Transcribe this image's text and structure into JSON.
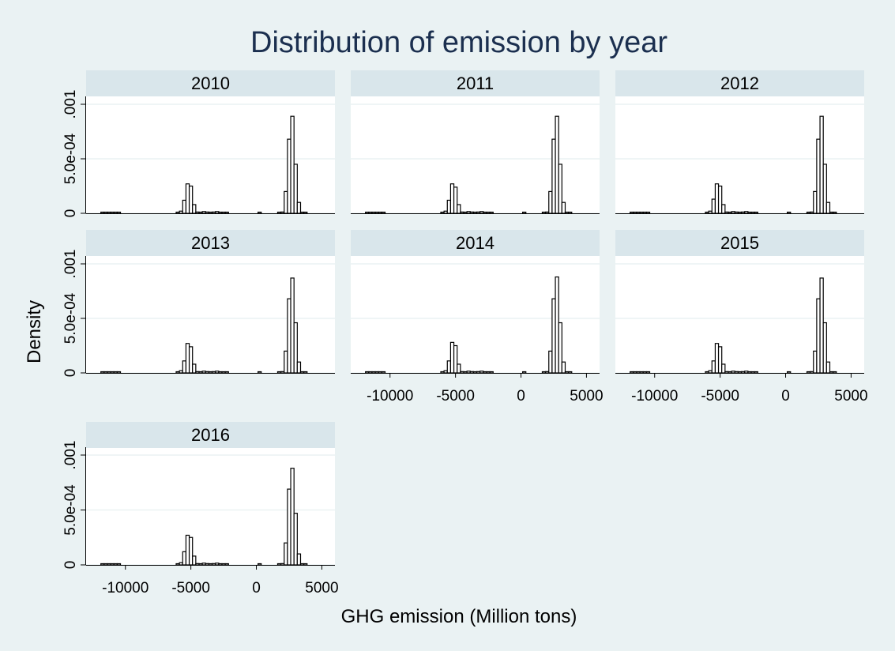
{
  "chart_data": {
    "type": "bar",
    "title": "Distribution of emission by year",
    "xlabel": "GHG emission (Million tons)",
    "ylabel": "Density",
    "xlim": [
      -13000,
      6000
    ],
    "ylim": [
      0,
      0.001
    ],
    "x_ticks": [
      -10000,
      -5000,
      0,
      5000
    ],
    "x_tick_labels": [
      "-10000",
      "-5000",
      "0",
      "5000"
    ],
    "y_ticks": [
      0,
      0.0005,
      0.001
    ],
    "y_tick_labels": [
      "0",
      "5.0e-04",
      ".001"
    ],
    "grid": true,
    "bin_width": 250,
    "bin_starts": [
      -11875,
      -11625,
      -11375,
      -11125,
      -10875,
      -10625,
      -6125,
      -5875,
      -5625,
      -5375,
      -5125,
      -4875,
      -4625,
      -4375,
      -4125,
      -3875,
      -3625,
      -3375,
      -3125,
      -2875,
      -2625,
      -2375,
      125,
      1625,
      1875,
      2125,
      2375,
      2625,
      2875,
      3125,
      3375,
      3625,
      3875,
      4125
    ],
    "panels": [
      {
        "label": "2010",
        "values": [
          4e-06,
          4e-06,
          4e-06,
          4e-06,
          4e-06,
          4e-06,
          4e-06,
          2e-05,
          0.00012,
          0.00027,
          0.00025,
          8e-05,
          1.2e-05,
          8e-06,
          1.6e-05,
          1.2e-05,
          8e-06,
          1.2e-05,
          1.6e-05,
          8e-06,
          8e-06,
          4e-06,
          8e-06,
          4e-06,
          1.2e-05,
          0.0002,
          0.00068,
          0.00089,
          0.00045,
          0.0001,
          1e-05,
          4e-06,
          0,
          0
        ]
      },
      {
        "label": "2011",
        "values": [
          4e-06,
          4e-06,
          4e-06,
          4e-06,
          4e-06,
          4e-06,
          4e-06,
          2e-05,
          0.00012,
          0.00027,
          0.00024,
          8e-05,
          1.2e-05,
          8e-06,
          1.6e-05,
          1.2e-05,
          8e-06,
          1.2e-05,
          1.6e-05,
          8e-06,
          8e-06,
          4e-06,
          8e-06,
          4e-06,
          1.2e-05,
          0.0002,
          0.00068,
          0.00089,
          0.00045,
          0.0001,
          1e-05,
          4e-06,
          0,
          0
        ]
      },
      {
        "label": "2012",
        "values": [
          4e-06,
          4e-06,
          4e-06,
          4e-06,
          4e-06,
          4e-06,
          4e-06,
          2e-05,
          0.00013,
          0.00027,
          0.00025,
          8e-05,
          1.2e-05,
          8e-06,
          1.6e-05,
          1.2e-05,
          8e-06,
          1.2e-05,
          1.6e-05,
          8e-06,
          8e-06,
          4e-06,
          8e-06,
          4e-06,
          1.2e-05,
          0.0002,
          0.00068,
          0.00089,
          0.00045,
          0.0001,
          1e-05,
          4e-06,
          0,
          0
        ]
      },
      {
        "label": "2013",
        "values": [
          4e-06,
          4e-06,
          4e-06,
          4e-06,
          4e-06,
          4e-06,
          4e-06,
          2e-05,
          0.00011,
          0.00027,
          0.00024,
          8e-05,
          1.2e-05,
          8e-06,
          1.6e-05,
          1.2e-05,
          8e-06,
          1.2e-05,
          1.6e-05,
          8e-06,
          8e-06,
          4e-06,
          8e-06,
          4e-06,
          1.2e-05,
          0.0002,
          0.00068,
          0.00087,
          0.00046,
          0.0001,
          1e-05,
          4e-06,
          0,
          0
        ]
      },
      {
        "label": "2014",
        "values": [
          4e-06,
          4e-06,
          4e-06,
          4e-06,
          4e-06,
          4e-06,
          4e-06,
          2e-05,
          0.00011,
          0.00028,
          0.00025,
          8e-05,
          1.2e-05,
          8e-06,
          1.6e-05,
          1.2e-05,
          8e-06,
          1.2e-05,
          1.6e-05,
          8e-06,
          8e-06,
          4e-06,
          4e-06,
          4e-06,
          1.2e-05,
          0.0002,
          0.00068,
          0.00088,
          0.00046,
          0.0001,
          1e-05,
          4e-06,
          0,
          0
        ]
      },
      {
        "label": "2015",
        "values": [
          4e-06,
          4e-06,
          4e-06,
          4e-06,
          4e-06,
          4e-06,
          4e-06,
          2e-05,
          0.00011,
          0.00027,
          0.00024,
          8e-05,
          1.2e-05,
          8e-06,
          1.6e-05,
          1.2e-05,
          8e-06,
          1.2e-05,
          1.6e-05,
          8e-06,
          8e-06,
          4e-06,
          4e-06,
          4e-06,
          1.2e-05,
          0.0002,
          0.00068,
          0.00087,
          0.00046,
          0.0001,
          1e-05,
          4e-06,
          0,
          0
        ]
      },
      {
        "label": "2016",
        "values": [
          4e-06,
          4e-06,
          4e-06,
          4e-06,
          4e-06,
          4e-06,
          4e-06,
          2e-05,
          0.00012,
          0.00027,
          0.00025,
          8e-05,
          1.2e-05,
          8e-06,
          1.6e-05,
          1.2e-05,
          8e-06,
          1.2e-05,
          1.6e-05,
          8e-06,
          8e-06,
          4e-06,
          4e-06,
          4e-06,
          1.2e-05,
          0.0002,
          0.00069,
          0.00088,
          0.00047,
          0.0001,
          1e-05,
          4e-06,
          0,
          0
        ]
      }
    ]
  }
}
